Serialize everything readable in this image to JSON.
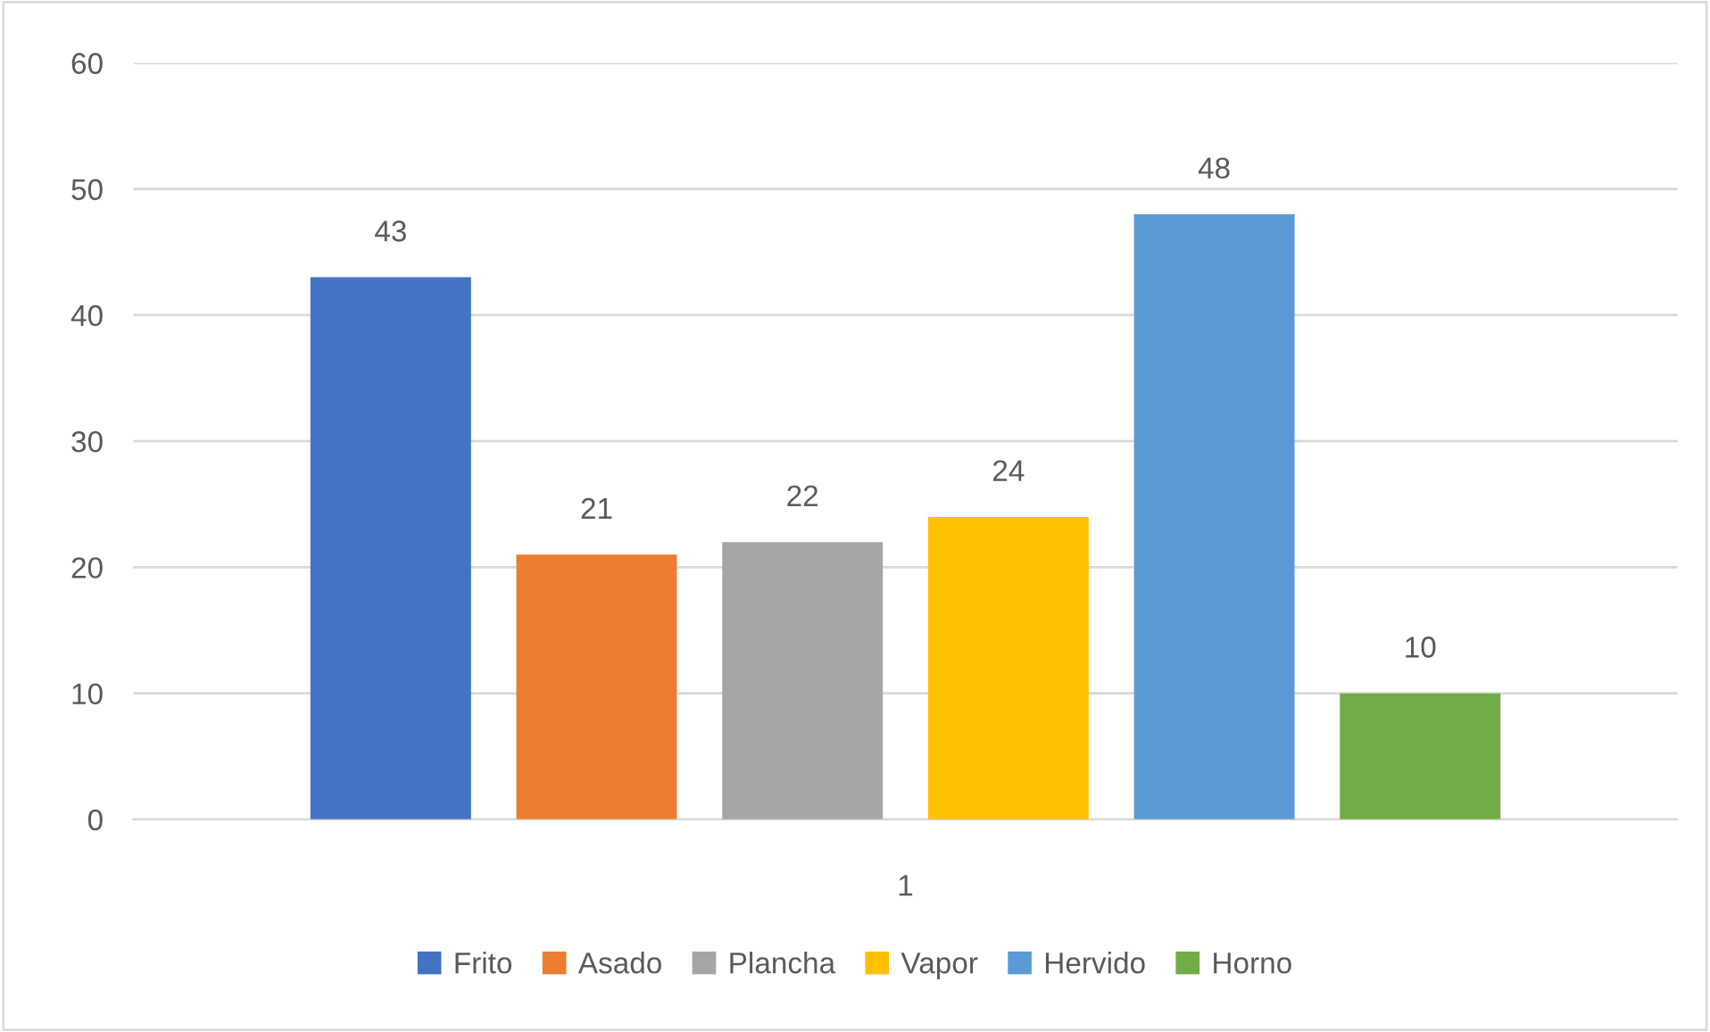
{
  "chart_data": {
    "type": "bar",
    "categories": [
      "1"
    ],
    "series": [
      {
        "name": "Frito",
        "color": "#4472c4",
        "values": [
          43
        ]
      },
      {
        "name": "Asado",
        "color": "#ed7d31",
        "values": [
          21
        ]
      },
      {
        "name": "Plancha",
        "color": "#a5a5a5",
        "values": [
          22
        ]
      },
      {
        "name": "Vapor",
        "color": "#ffc000",
        "values": [
          24
        ]
      },
      {
        "name": "Hervido",
        "color": "#5b9bd5",
        "values": [
          48
        ]
      },
      {
        "name": "Horno",
        "color": "#70ad47",
        "values": [
          10
        ]
      }
    ],
    "ylim": [
      0,
      60
    ],
    "yticks": [
      0,
      10,
      20,
      30,
      40,
      50,
      60
    ],
    "grid": "y",
    "legend": "bottom",
    "data_labels": true
  }
}
